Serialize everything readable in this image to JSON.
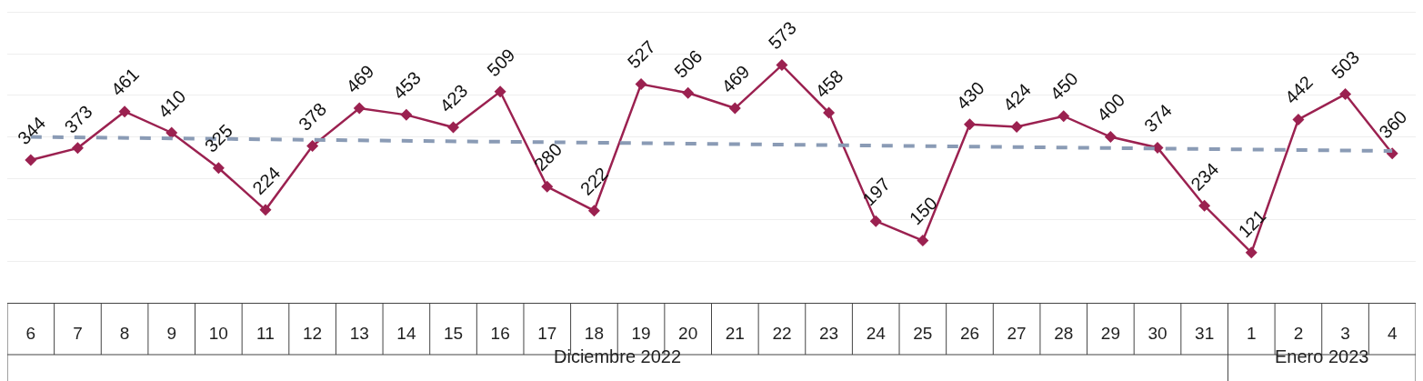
{
  "chart_data": {
    "type": "line",
    "categories": [
      "6",
      "7",
      "8",
      "9",
      "10",
      "11",
      "12",
      "13",
      "14",
      "15",
      "16",
      "17",
      "18",
      "19",
      "20",
      "21",
      "22",
      "23",
      "24",
      "25",
      "26",
      "27",
      "28",
      "29",
      "30",
      "31",
      "1",
      "2",
      "3",
      "4"
    ],
    "series": [
      {
        "color": "#9b2150",
        "marker": "diamond",
        "line_style": "solid",
        "values": [
          344,
          373,
          461,
          410,
          325,
          224,
          378,
          469,
          453,
          423,
          509,
          280,
          222,
          527,
          506,
          469,
          573,
          458,
          197,
          150,
          430,
          424,
          450,
          400,
          374,
          234,
          121,
          442,
          503,
          360
        ],
        "value_labels": [
          "344",
          "373",
          "461",
          "410",
          "325",
          "224",
          "378",
          "469",
          "453",
          "423",
          "509",
          "280",
          "222",
          "527",
          "506",
          "469",
          "573",
          "458",
          "197",
          "150",
          "430",
          "424",
          "450",
          "400",
          "374",
          "234",
          "121",
          "442",
          "503",
          "360"
        ]
      },
      {
        "type": "line",
        "color": "#8a9bb5",
        "line_style": "dashed",
        "x": [
          "6",
          "4"
        ],
        "values": [
          400,
          366
        ]
      }
    ],
    "annotations": [
      "Diciembre 2022",
      "Enero 2023"
    ],
    "ylim": [
      0,
      730
    ],
    "yticks": [
      {
        "value": 0,
        "label": null
      },
      {
        "value": 100,
        "label": null
      },
      {
        "value": 200,
        "label": null
      },
      {
        "value": 300,
        "label": null
      },
      {
        "value": 400,
        "label": null
      },
      {
        "value": 500,
        "label": null
      },
      {
        "value": 600,
        "label": null
      },
      {
        "value": 700,
        "label": null
      }
    ],
    "grid": "y",
    "tick_labels": "x"
  }
}
